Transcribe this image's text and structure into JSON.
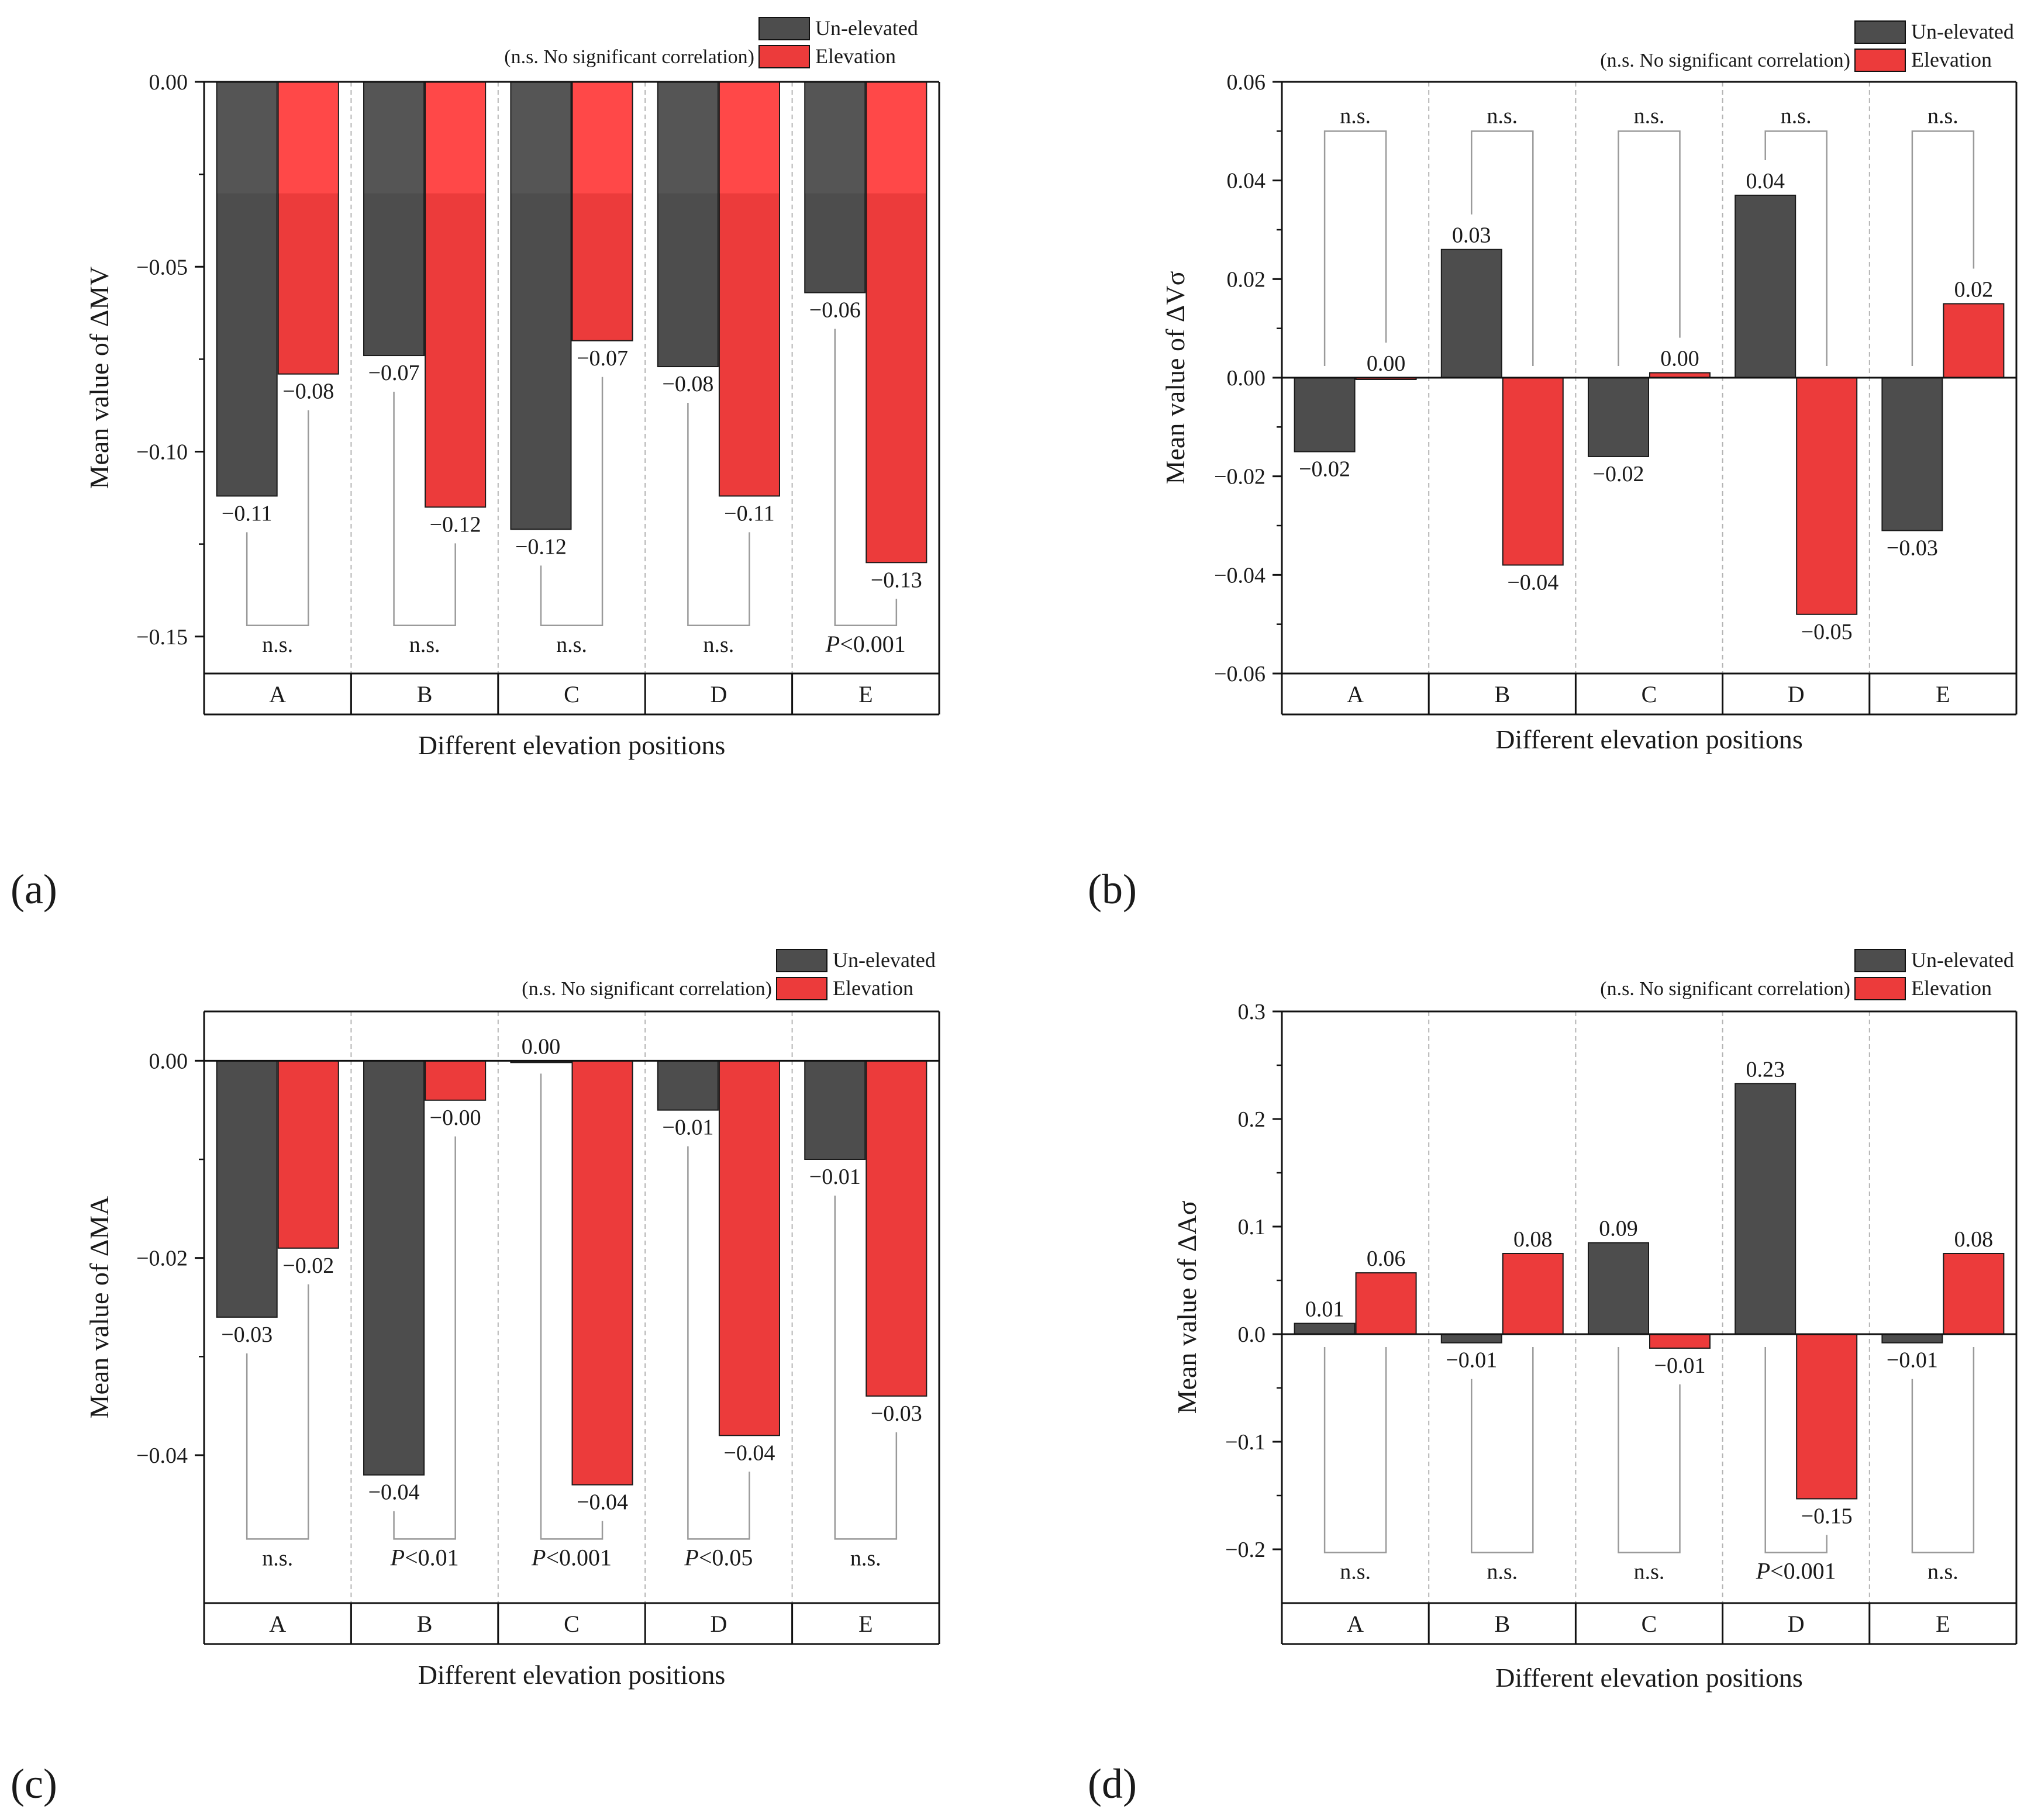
{
  "figure": {
    "xlabel": "Different elevation positions",
    "legend_note": "(n.s. No significant correlation)",
    "series_names": [
      "Un-elevated",
      "Elevation"
    ],
    "colors": {
      "unelevated": "#4d4d4d",
      "elevation": "#ec3b3b",
      "elevation_light": "#ff4848"
    }
  },
  "chart_data": [
    {
      "panel": "(a)",
      "type": "bar",
      "ylabel": "Mean value of ΔMV",
      "categories": [
        "A",
        "B",
        "C",
        "D",
        "E"
      ],
      "ylim": [
        -0.16,
        0.0
      ],
      "yticks": [
        0.0,
        -0.05,
        -0.1,
        -0.15
      ],
      "ytick_labels": [
        "0.00",
        "−0.05",
        "−0.10",
        "−0.15"
      ],
      "series": [
        {
          "name": "Un-elevated",
          "values": [
            -0.112,
            -0.074,
            -0.121,
            -0.077,
            -0.057
          ],
          "labels": [
            "−0.11",
            "−0.07",
            "−0.12",
            "−0.08",
            "−0.06"
          ]
        },
        {
          "name": "Elevation",
          "values": [
            -0.079,
            -0.115,
            -0.07,
            -0.112,
            -0.13
          ],
          "labels": [
            "−0.08",
            "−0.12",
            "−0.07",
            "−0.11",
            "−0.13"
          ]
        }
      ],
      "significance": [
        "n.s.",
        "n.s.",
        "n.s.",
        "n.s.",
        "P<0.001"
      ],
      "bracket": "below"
    },
    {
      "panel": "(b)",
      "type": "bar",
      "ylabel": "Mean value of ΔVσ",
      "categories": [
        "A",
        "B",
        "C",
        "D",
        "E"
      ],
      "ylim": [
        -0.06,
        0.06
      ],
      "yticks": [
        0.06,
        0.04,
        0.02,
        0.0,
        -0.02,
        -0.04,
        -0.06
      ],
      "ytick_labels": [
        "0.06",
        "0.04",
        "0.02",
        "0.00",
        "−0.02",
        "−0.04",
        "−0.06"
      ],
      "series": [
        {
          "name": "Un-elevated",
          "values": [
            -0.015,
            0.026,
            -0.016,
            0.037,
            -0.031
          ],
          "labels": [
            "−0.02",
            "0.03",
            "−0.02",
            "0.04",
            "−0.03"
          ]
        },
        {
          "name": "Elevation",
          "values": [
            0.0,
            -0.038,
            0.001,
            -0.048,
            0.015
          ],
          "labels": [
            "0.00",
            "−0.04",
            "0.00",
            "−0.05",
            "0.02"
          ]
        }
      ],
      "significance": [
        "n.s.",
        "n.s.",
        "n.s.",
        "n.s.",
        "n.s."
      ],
      "bracket": "above"
    },
    {
      "panel": "(c)",
      "type": "bar",
      "ylabel": "Mean value of ΔMA",
      "categories": [
        "A",
        "B",
        "C",
        "D",
        "E"
      ],
      "ylim": [
        -0.055,
        0.005
      ],
      "yticks": [
        0.0,
        -0.02,
        -0.04
      ],
      "ytick_labels": [
        "0.00",
        "−0.02",
        "−0.04"
      ],
      "series": [
        {
          "name": "Un-elevated",
          "values": [
            -0.026,
            -0.042,
            0.0,
            -0.005,
            -0.01
          ],
          "labels": [
            "−0.03",
            "−0.04",
            "0.00",
            "−0.01",
            "−0.01"
          ]
        },
        {
          "name": "Elevation",
          "values": [
            -0.019,
            -0.004,
            -0.043,
            -0.038,
            -0.034
          ],
          "labels": [
            "−0.02",
            "−0.00",
            "−0.04",
            "−0.04",
            "−0.03"
          ]
        }
      ],
      "significance": [
        "n.s.",
        "P<0.01",
        "P<0.001",
        "P<0.05",
        "n.s."
      ],
      "bracket": "below"
    },
    {
      "panel": "(d)",
      "type": "bar",
      "ylabel": "Mean value of ΔAσ",
      "categories": [
        "A",
        "B",
        "C",
        "D",
        "E"
      ],
      "ylim": [
        -0.25,
        0.3
      ],
      "yticks": [
        0.3,
        0.2,
        0.1,
        0.0,
        -0.1,
        -0.2
      ],
      "ytick_labels": [
        "0.3",
        "0.2",
        "0.1",
        "0.0",
        "−0.1",
        "−0.2"
      ],
      "series": [
        {
          "name": "Un-elevated",
          "values": [
            0.01,
            -0.008,
            0.085,
            0.233,
            -0.008
          ],
          "labels": [
            "0.01",
            "−0.01",
            "0.09",
            "0.23",
            "−0.01"
          ]
        },
        {
          "name": "Elevation",
          "values": [
            0.057,
            0.075,
            -0.013,
            -0.153,
            0.075
          ],
          "labels": [
            "0.06",
            "0.08",
            "−0.01",
            "−0.15",
            "0.08"
          ]
        }
      ],
      "significance": [
        "n.s.",
        "n.s.",
        "n.s.",
        "P<0.001",
        "n.s."
      ],
      "bracket": "below"
    }
  ]
}
